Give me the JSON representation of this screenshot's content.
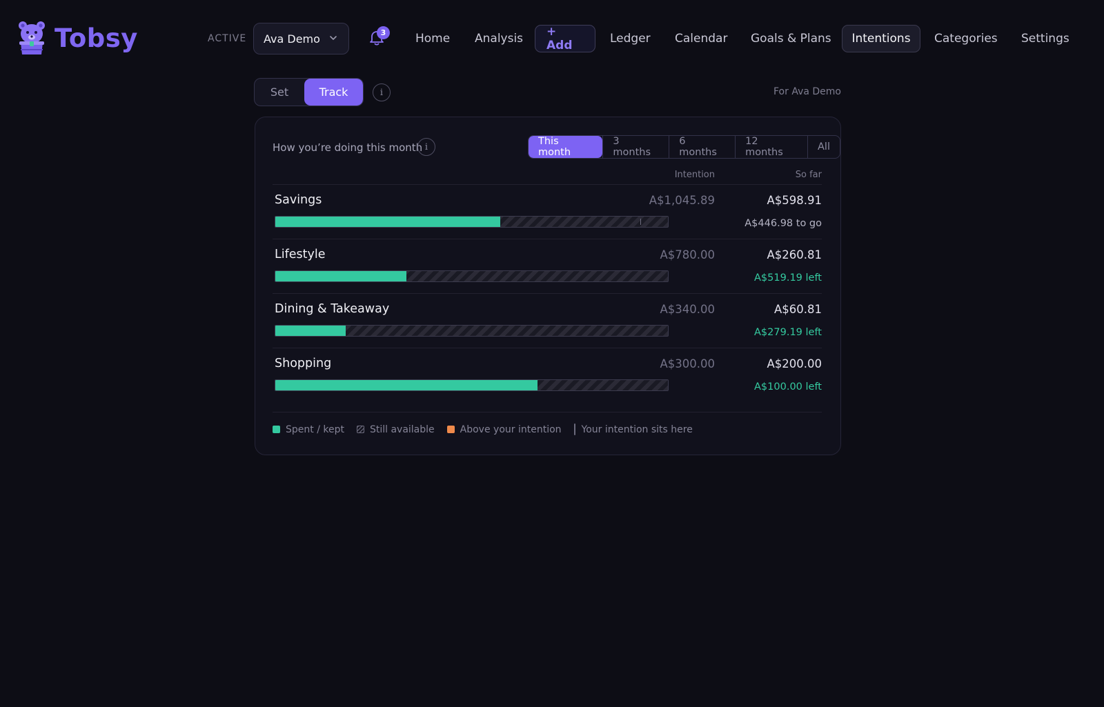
{
  "app": {
    "name": "Tobsy"
  },
  "header": {
    "active_label": "ACTIVE",
    "profile": "Ava Demo",
    "notifications_count": "3",
    "nav": {
      "home": "Home",
      "analysis": "Analysis",
      "add": "+ Add",
      "ledger": "Ledger",
      "calendar": "Calendar",
      "goals": "Goals & Plans",
      "intentions": "Intentions",
      "categories": "Categories",
      "settings": "Settings"
    },
    "active_nav": "Intentions"
  },
  "mode_toggle": {
    "set": "Set",
    "track": "Track",
    "selected": "Track"
  },
  "for_label": "For Ava Demo",
  "card": {
    "title": "How you’re doing this month",
    "ranges": [
      "This month",
      "3 months",
      "6 months",
      "12 months",
      "All"
    ],
    "selected_range": "This month",
    "col_intention": "Intention",
    "col_so_far": "So far",
    "rows": [
      {
        "name": "Savings",
        "intention": "A$1,045.89",
        "so_far": "A$598.91",
        "status": "A$446.98 to go",
        "status_type": "togo",
        "spent_fraction": 0.573,
        "intention_mark": 0.93
      },
      {
        "name": "Lifestyle",
        "intention": "A$780.00",
        "so_far": "A$260.81",
        "status": "A$519.19 left",
        "status_type": "left",
        "spent_fraction": 0.334
      },
      {
        "name": "Dining & Takeaway",
        "intention": "A$340.00",
        "so_far": "A$60.81",
        "status": "A$279.19 left",
        "status_type": "left",
        "spent_fraction": 0.179
      },
      {
        "name": "Shopping",
        "intention": "A$300.00",
        "so_far": "A$200.00",
        "status": "A$100.00 left",
        "status_type": "left",
        "spent_fraction": 0.667
      }
    ],
    "legend": {
      "spent": "Spent / kept",
      "available": "Still available",
      "above": "Above your intention",
      "marker": "Your intention sits here"
    }
  },
  "colors": {
    "accent": "#7d63f3",
    "spent": "#34c9a0",
    "above": "#ef8a4b",
    "background": "#0d0d15"
  }
}
